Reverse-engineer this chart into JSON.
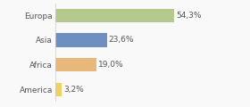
{
  "categories": [
    "Europa",
    "Asia",
    "Africa",
    "America"
  ],
  "values": [
    54.3,
    23.6,
    19.0,
    3.2
  ],
  "labels": [
    "54,3%",
    "23,6%",
    "19,0%",
    "3,2%"
  ],
  "bar_colors": [
    "#b5c98e",
    "#6e8fbf",
    "#e8b87a",
    "#f0d060"
  ],
  "background_color": "#f9f9f9",
  "xlim": [
    0,
    75
  ],
  "label_fontsize": 6.5,
  "tick_fontsize": 6.5,
  "bar_height": 0.55
}
